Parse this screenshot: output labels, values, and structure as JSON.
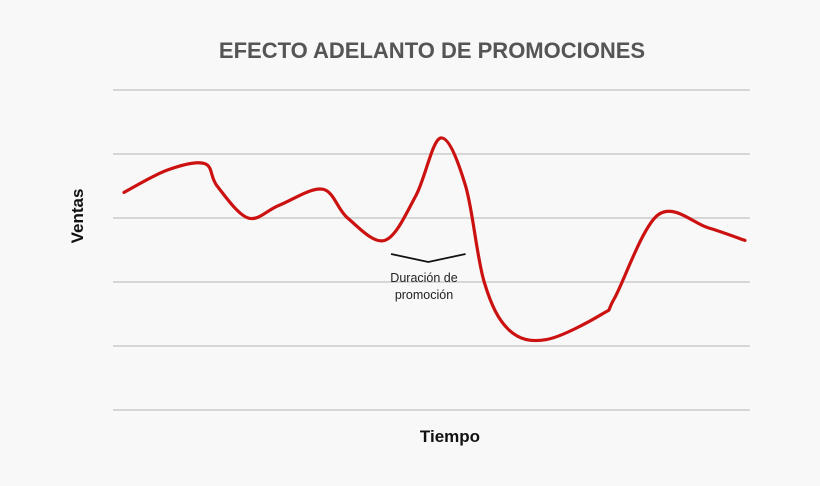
{
  "chart_data": {
    "type": "line",
    "title": "EFECTO ADELANTO DE PROMOCIONES",
    "xlabel": "Tiempo",
    "ylabel": "Ventas",
    "grid": true,
    "xlim": [
      0,
      100
    ],
    "ylim": [
      0,
      100
    ],
    "series": [
      {
        "color": "#cc1111",
        "points": [
          [
            0,
            68
          ],
          [
            7,
            75
          ],
          [
            13,
            77
          ],
          [
            15,
            70
          ],
          [
            20,
            60
          ],
          [
            25,
            64
          ],
          [
            32,
            69
          ],
          [
            36,
            60
          ],
          [
            42,
            53
          ],
          [
            47,
            67
          ],
          [
            51,
            85
          ],
          [
            55,
            70
          ],
          [
            58,
            40
          ],
          [
            62,
            25
          ],
          [
            68,
            22
          ],
          [
            77,
            30
          ],
          [
            79,
            35
          ],
          [
            86,
            61
          ],
          [
            94,
            57
          ],
          [
            100,
            53
          ]
        ]
      }
    ],
    "annotations": [
      {
        "text_lines": [
          "Duración de",
          "promoción"
        ],
        "x_start": 43,
        "x_end": 55
      }
    ]
  }
}
